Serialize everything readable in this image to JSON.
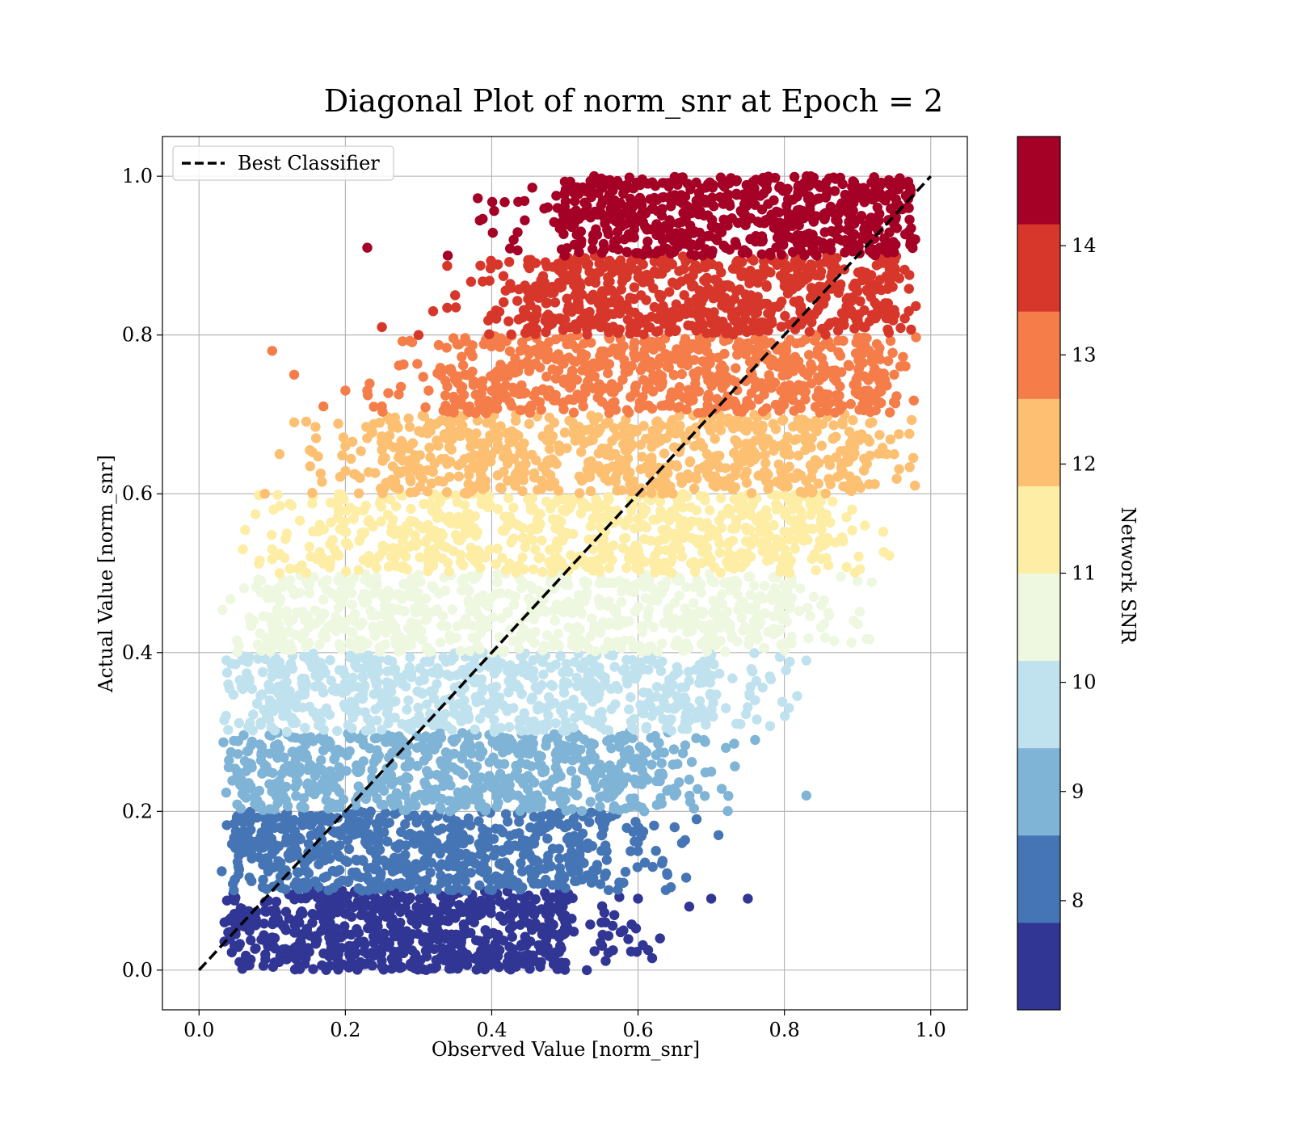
{
  "chart_data": {
    "type": "scatter",
    "title": "Diagonal Plot of norm_snr at Epoch = 2",
    "xlabel": "Observed Value [norm_snr]",
    "ylabel": "Actual Value [norm_snr]",
    "xlim": [
      -0.05,
      1.05
    ],
    "ylim": [
      -0.05,
      1.05
    ],
    "grid": true,
    "x_ticks": [
      0.0,
      0.2,
      0.4,
      0.6,
      0.8,
      1.0
    ],
    "y_ticks": [
      0.0,
      0.2,
      0.4,
      0.6,
      0.8,
      1.0
    ],
    "x_tick_labels": [
      "0.0",
      "0.2",
      "0.4",
      "0.6",
      "0.8",
      "1.0"
    ],
    "y_tick_labels": [
      "0.0",
      "0.2",
      "0.4",
      "0.6",
      "0.8",
      "1.0"
    ],
    "legend": {
      "location": "upper-left",
      "entries": [
        "Best Classifier"
      ]
    },
    "reference_line": {
      "label": "Best Classifier",
      "x": [
        0.0,
        1.0
      ],
      "y": [
        0.0,
        1.0
      ],
      "style": "dashed",
      "color": "#000000"
    },
    "colorbar": {
      "label": "Network SNR",
      "range": [
        7.0,
        15.0
      ],
      "ticks": [
        8,
        9,
        10,
        11,
        12,
        13,
        14
      ],
      "tick_labels": [
        "8",
        "9",
        "10",
        "11",
        "12",
        "13",
        "14"
      ],
      "bins": [
        {
          "from": 7.0,
          "to": 7.8,
          "color": "#313695"
        },
        {
          "from": 7.8,
          "to": 8.6,
          "color": "#4575b4"
        },
        {
          "from": 8.6,
          "to": 9.4,
          "color": "#7fb4d6"
        },
        {
          "from": 9.4,
          "to": 10.2,
          "color": "#c0e2ee"
        },
        {
          "from": 10.2,
          "to": 11.0,
          "color": "#eef7df"
        },
        {
          "from": 11.0,
          "to": 11.8,
          "color": "#fdeda5"
        },
        {
          "from": 11.8,
          "to": 12.6,
          "color": "#fdbf71"
        },
        {
          "from": 12.6,
          "to": 13.4,
          "color": "#f57d4a"
        },
        {
          "from": 13.4,
          "to": 14.2,
          "color": "#d7372a"
        },
        {
          "from": 14.2,
          "to": 15.0,
          "color": "#a50026"
        }
      ]
    },
    "series": [
      {
        "name": "band 0.0-0.1",
        "y_range": [
          0.0,
          0.1
        ],
        "core_x_range": [
          0.05,
          0.5
        ],
        "color": "#313695",
        "outliers": [
          [
            0.53,
            0.0
          ],
          [
            0.63,
            0.04
          ],
          [
            0.67,
            0.08
          ],
          [
            0.7,
            0.09
          ],
          [
            0.75,
            0.09
          ],
          [
            0.55,
            0.06
          ],
          [
            0.58,
            0.05
          ],
          [
            0.48,
            0.02
          ],
          [
            0.44,
            0.03
          ],
          [
            0.6,
            0.09
          ]
        ]
      },
      {
        "name": "band 0.1-0.2",
        "y_range": [
          0.1,
          0.2
        ],
        "core_x_range": [
          0.05,
          0.55
        ],
        "color": "#4575b4",
        "outliers": [
          [
            0.64,
            0.12
          ],
          [
            0.66,
            0.16
          ],
          [
            0.71,
            0.17
          ],
          [
            0.68,
            0.19
          ],
          [
            0.6,
            0.15
          ],
          [
            0.62,
            0.13
          ],
          [
            0.58,
            0.11
          ],
          [
            0.65,
            0.18
          ]
        ]
      },
      {
        "name": "band 0.2-0.3",
        "y_range": [
          0.2,
          0.3
        ],
        "core_x_range": [
          0.06,
          0.63
        ],
        "color": "#7fb4d6",
        "outliers": [
          [
            0.83,
            0.22
          ],
          [
            0.76,
            0.29
          ],
          [
            0.7,
            0.25
          ],
          [
            0.69,
            0.29
          ],
          [
            0.72,
            0.28
          ],
          [
            0.67,
            0.24
          ],
          [
            0.65,
            0.22
          ]
        ]
      },
      {
        "name": "band 0.3-0.4",
        "y_range": [
          0.3,
          0.4
        ],
        "core_x_range": [
          0.07,
          0.7
        ],
        "color": "#c0e2ee",
        "outliers": [
          [
            0.83,
            0.39
          ],
          [
            0.78,
            0.37
          ],
          [
            0.76,
            0.34
          ],
          [
            0.72,
            0.33
          ],
          [
            0.74,
            0.31
          ],
          [
            0.04,
            0.36
          ]
        ]
      },
      {
        "name": "band 0.4-0.5",
        "y_range": [
          0.4,
          0.5
        ],
        "core_x_range": [
          0.1,
          0.8
        ],
        "color": "#eef7df",
        "outliers": [
          [
            0.9,
            0.49
          ],
          [
            0.86,
            0.45
          ],
          [
            0.84,
            0.47
          ],
          [
            0.81,
            0.42
          ],
          [
            0.07,
            0.44
          ],
          [
            0.08,
            0.41
          ]
        ]
      },
      {
        "name": "band 0.5-0.6",
        "y_range": [
          0.5,
          0.6
        ],
        "core_x_range": [
          0.18,
          0.85
        ],
        "color": "#fdeda5",
        "outliers": [
          [
            0.06,
            0.53
          ],
          [
            0.1,
            0.53
          ],
          [
            0.12,
            0.55
          ],
          [
            0.91,
            0.56
          ],
          [
            0.88,
            0.54
          ],
          [
            0.86,
            0.51
          ],
          [
            0.11,
            0.5
          ]
        ]
      },
      {
        "name": "band 0.6-0.7",
        "y_range": [
          0.6,
          0.7
        ],
        "core_x_range": [
          0.25,
          0.9
        ],
        "color": "#fdbf71",
        "outliers": [
          [
            0.09,
            0.6
          ],
          [
            0.11,
            0.65
          ],
          [
            0.13,
            0.69
          ],
          [
            0.16,
            0.67
          ],
          [
            0.2,
            0.66
          ],
          [
            0.94,
            0.65
          ],
          [
            0.92,
            0.69
          ],
          [
            0.22,
            0.62
          ]
        ]
      },
      {
        "name": "band 0.7-0.8",
        "y_range": [
          0.7,
          0.8
        ],
        "core_x_range": [
          0.35,
          0.93
        ],
        "color": "#f57d4a",
        "outliers": [
          [
            0.1,
            0.78
          ],
          [
            0.13,
            0.75
          ],
          [
            0.17,
            0.71
          ],
          [
            0.2,
            0.73
          ],
          [
            0.23,
            0.73
          ],
          [
            0.95,
            0.75
          ],
          [
            0.25,
            0.71
          ]
        ]
      },
      {
        "name": "band 0.8-0.9",
        "y_range": [
          0.8,
          0.9
        ],
        "core_x_range": [
          0.45,
          0.95
        ],
        "color": "#d7372a",
        "outliers": [
          [
            0.25,
            0.81
          ],
          [
            0.32,
            0.83
          ],
          [
            0.4,
            0.89
          ],
          [
            0.97,
            0.83
          ],
          [
            0.3,
            0.8
          ],
          [
            0.35,
            0.85
          ]
        ]
      },
      {
        "name": "band 0.9-1.0",
        "y_range": [
          0.9,
          1.0
        ],
        "core_x_range": [
          0.5,
          0.97
        ],
        "color": "#a50026",
        "outliers": [
          [
            0.23,
            0.91
          ],
          [
            0.34,
            0.9
          ],
          [
            0.43,
            0.92
          ],
          [
            0.49,
            0.96
          ],
          [
            0.54,
            1.0
          ],
          [
            0.5,
            0.9
          ],
          [
            0.56,
            0.97
          ]
        ]
      }
    ]
  }
}
